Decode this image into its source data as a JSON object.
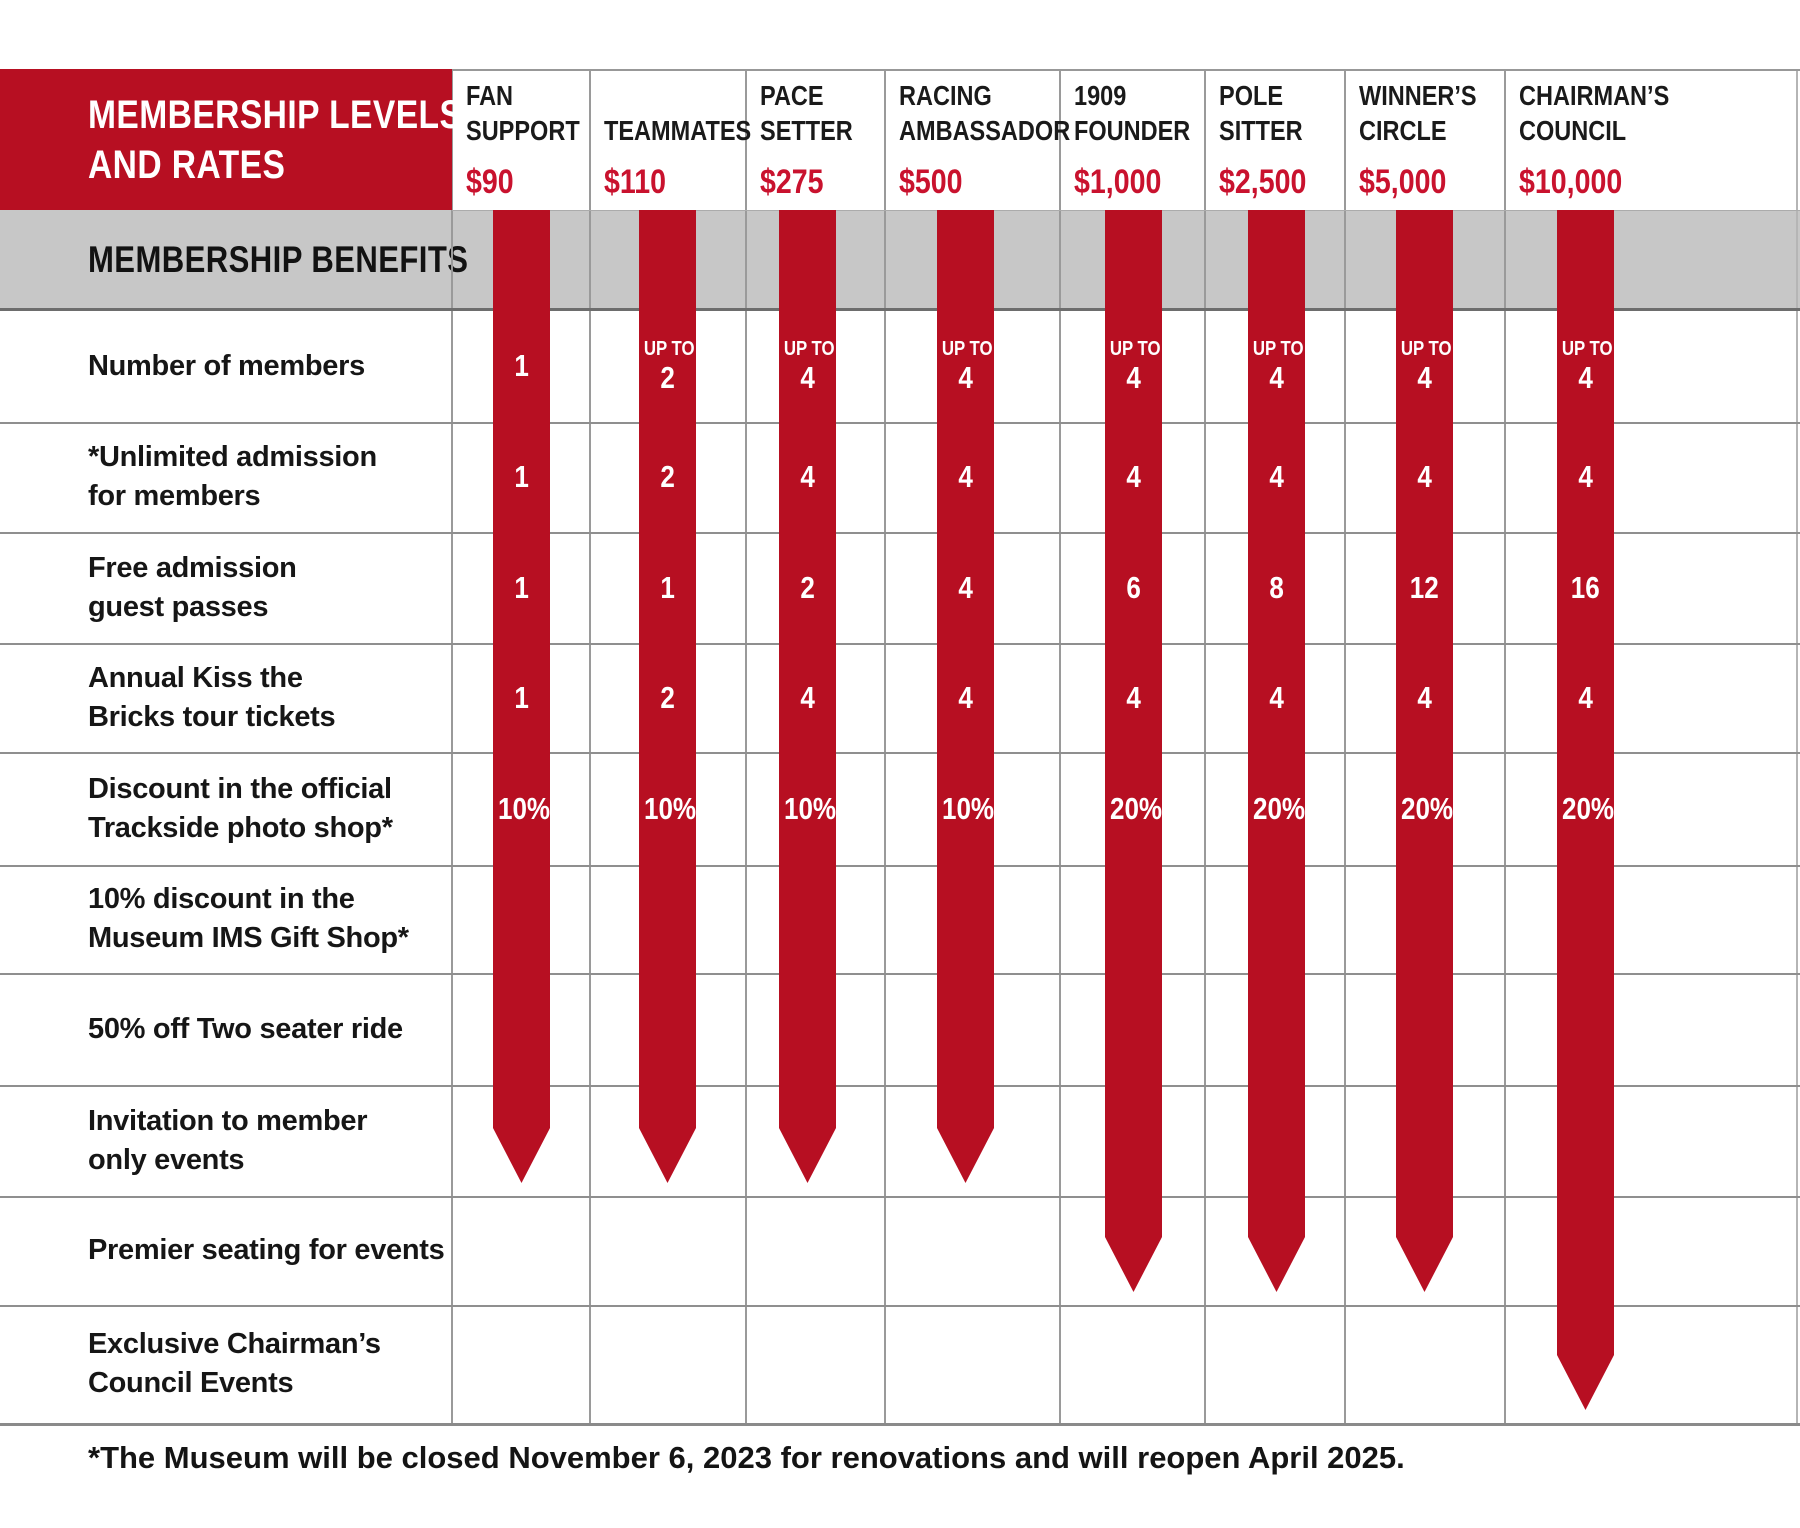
{
  "title_lines": [
    "MEMBERSHIP LEVELS",
    "AND RATES"
  ],
  "benefits_header": "MEMBERSHIP BENEFITS",
  "footnote": "*The Museum will be closed November 6, 2023 for renovations and will reopen April 2025.",
  "colors": {
    "header_red": "#B70F22",
    "ribbon_red": "#B70F22",
    "price_red": "#C9122E",
    "band_gray": "#C7C7C7",
    "grid_gray": "#8F8F8F",
    "text_black": "#161616",
    "text_white": "#FFFFFF"
  },
  "benefits": [
    {
      "id": "number_of_members",
      "label_lines": [
        "Number of members"
      ]
    },
    {
      "id": "unlimited_admission",
      "label_lines": [
        "*Unlimited admission",
        "for members"
      ]
    },
    {
      "id": "guest_passes",
      "label_lines": [
        "Free admission",
        "guest passes"
      ]
    },
    {
      "id": "bricks_tour",
      "label_lines": [
        "Annual Kiss the",
        "Bricks tour tickets"
      ]
    },
    {
      "id": "photo_shop",
      "label_lines": [
        "Discount in the official",
        "Trackside photo shop*"
      ]
    },
    {
      "id": "gift_shop",
      "label_lines": [
        "10% discount in the",
        "Museum IMS Gift Shop*"
      ]
    },
    {
      "id": "two_seater",
      "label_lines": [
        "50% off Two seater ride"
      ]
    },
    {
      "id": "member_events",
      "label_lines": [
        "Invitation to member",
        "only events"
      ]
    },
    {
      "id": "premier_seating",
      "label_lines": [
        "Premier seating for events"
      ]
    },
    {
      "id": "chairmans_events",
      "label_lines": [
        "Exclusive Chairman’s",
        "Council Events"
      ]
    }
  ],
  "tiers": [
    {
      "name_lines": [
        "FAN",
        "SUPPORT"
      ],
      "price": "$90",
      "values": {
        "number_up_to": "",
        "number_of_members": "1",
        "unlimited_admission": "1",
        "guest_passes": "1",
        "bricks_tour": "1",
        "photo_shop": "10%"
      },
      "included_through": "member_events"
    },
    {
      "name_lines": [
        "TEAMMATES"
      ],
      "price": "$110",
      "values": {
        "number_up_to": "UP TO",
        "number_of_members": "2",
        "unlimited_admission": "2",
        "guest_passes": "1",
        "bricks_tour": "2",
        "photo_shop": "10%"
      },
      "included_through": "member_events"
    },
    {
      "name_lines": [
        "PACE",
        "SETTER"
      ],
      "price": "$275",
      "values": {
        "number_up_to": "UP TO",
        "number_of_members": "4",
        "unlimited_admission": "4",
        "guest_passes": "2",
        "bricks_tour": "4",
        "photo_shop": "10%"
      },
      "included_through": "member_events"
    },
    {
      "name_lines": [
        "RACING",
        "AMBASSADOR"
      ],
      "price": "$500",
      "values": {
        "number_up_to": "UP TO",
        "number_of_members": "4",
        "unlimited_admission": "4",
        "guest_passes": "4",
        "bricks_tour": "4",
        "photo_shop": "10%"
      },
      "included_through": "member_events"
    },
    {
      "name_lines": [
        "1909",
        "FOUNDER"
      ],
      "price": "$1,000",
      "values": {
        "number_up_to": "UP TO",
        "number_of_members": "4",
        "unlimited_admission": "4",
        "guest_passes": "6",
        "bricks_tour": "4",
        "photo_shop": "20%"
      },
      "included_through": "premier_seating"
    },
    {
      "name_lines": [
        "POLE",
        "SITTER"
      ],
      "price": "$2,500",
      "values": {
        "number_up_to": "UP TO",
        "number_of_members": "4",
        "unlimited_admission": "4",
        "guest_passes": "8",
        "bricks_tour": "4",
        "photo_shop": "20%"
      },
      "included_through": "premier_seating"
    },
    {
      "name_lines": [
        "WINNER’S",
        "CIRCLE"
      ],
      "price": "$5,000",
      "values": {
        "number_up_to": "UP TO",
        "number_of_members": "4",
        "unlimited_admission": "4",
        "guest_passes": "12",
        "bricks_tour": "4",
        "photo_shop": "20%"
      },
      "included_through": "premier_seating"
    },
    {
      "name_lines": [
        "CHAIRMAN’S",
        "COUNCIL"
      ],
      "price": "$10,000",
      "values": {
        "number_up_to": "UP TO",
        "number_of_members": "4",
        "unlimited_admission": "4",
        "guest_passes": "16",
        "bricks_tour": "4",
        "photo_shop": "20%"
      },
      "included_through": "chairmans_events"
    }
  ],
  "chart_data": {
    "type": "table",
    "title": "MEMBERSHIP LEVELS AND RATES",
    "columns": [
      "FAN SUPPORT $90",
      "TEAMMATES $110",
      "PACE SETTER $275",
      "RACING AMBASSADOR $500",
      "1909 FOUNDER $1,000",
      "POLE SITTER $2,500",
      "WINNER'S CIRCLE $5,000",
      "CHAIRMAN'S COUNCIL $10,000"
    ],
    "rows": [
      {
        "benefit": "Number of members",
        "values": [
          "1",
          "UP TO 2",
          "UP TO 4",
          "UP TO 4",
          "UP TO 4",
          "UP TO 4",
          "UP TO 4",
          "UP TO 4"
        ]
      },
      {
        "benefit": "*Unlimited admission for members",
        "values": [
          "1",
          "2",
          "4",
          "4",
          "4",
          "4",
          "4",
          "4"
        ]
      },
      {
        "benefit": "Free admission guest passes",
        "values": [
          "1",
          "1",
          "2",
          "4",
          "6",
          "8",
          "12",
          "16"
        ]
      },
      {
        "benefit": "Annual Kiss the Bricks tour tickets",
        "values": [
          "1",
          "2",
          "4",
          "4",
          "4",
          "4",
          "4",
          "4"
        ]
      },
      {
        "benefit": "Discount in the official Trackside photo shop*",
        "values": [
          "10%",
          "10%",
          "10%",
          "10%",
          "20%",
          "20%",
          "20%",
          "20%"
        ]
      },
      {
        "benefit": "10% discount in the Museum IMS Gift Shop*",
        "values": [
          "included",
          "included",
          "included",
          "included",
          "included",
          "included",
          "included",
          "included"
        ]
      },
      {
        "benefit": "50% off Two seater ride",
        "values": [
          "included",
          "included",
          "included",
          "included",
          "included",
          "included",
          "included",
          "included"
        ]
      },
      {
        "benefit": "Invitation to member only events",
        "values": [
          "included",
          "included",
          "included",
          "included",
          "included",
          "included",
          "included",
          "included"
        ]
      },
      {
        "benefit": "Premier seating for events",
        "values": [
          "",
          "",
          "",
          "",
          "included",
          "included",
          "included",
          "included"
        ]
      },
      {
        "benefit": "Exclusive Chairman's Council Events",
        "values": [
          "",
          "",
          "",
          "",
          "",
          "",
          "",
          "included"
        ]
      }
    ]
  }
}
